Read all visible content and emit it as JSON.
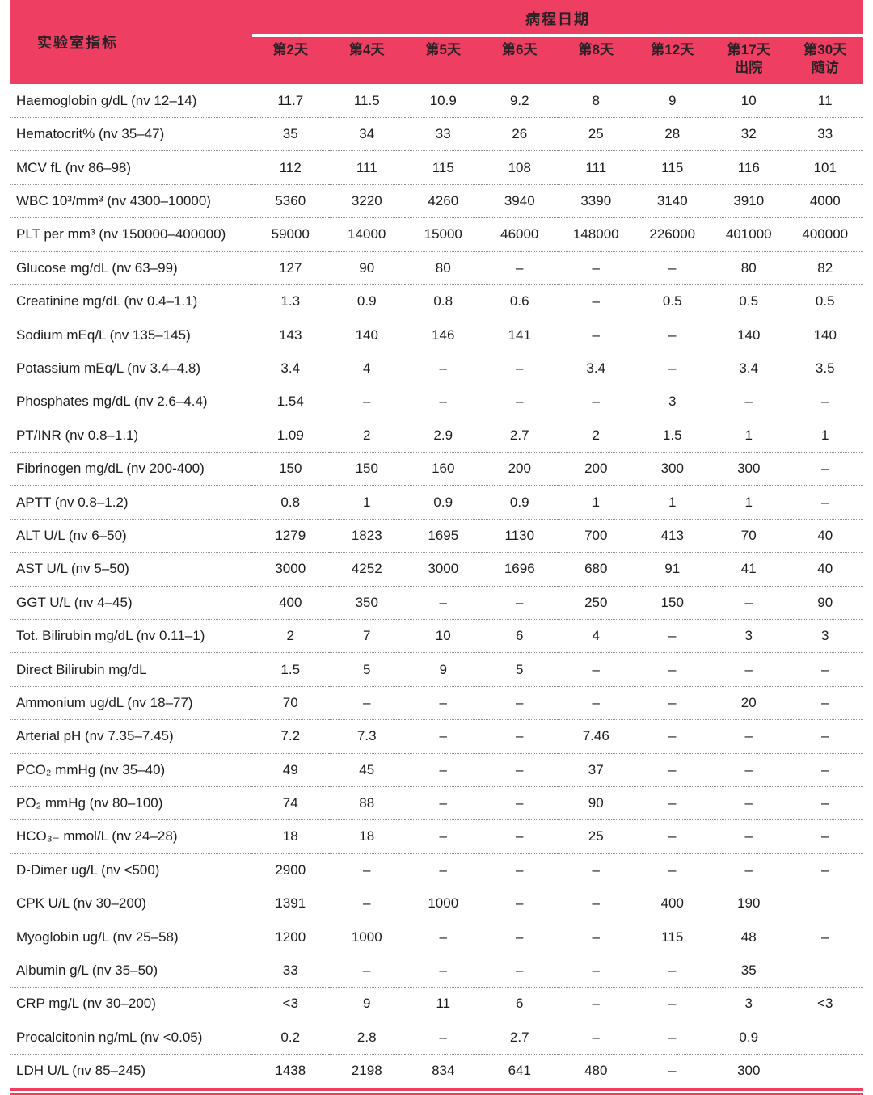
{
  "colors": {
    "accent": "#ee3e62",
    "header-text": "#2b2125",
    "body-text": "#1d1d1d",
    "dot": "#8f8f8f"
  },
  "table": {
    "header": {
      "col1": "实验室指标",
      "group": "病程日期",
      "columns": [
        {
          "label": "第2天",
          "sub": ""
        },
        {
          "label": "第4天",
          "sub": ""
        },
        {
          "label": "第5天",
          "sub": ""
        },
        {
          "label": "第6天",
          "sub": ""
        },
        {
          "label": "第8天",
          "sub": ""
        },
        {
          "label": "第12天",
          "sub": ""
        },
        {
          "label": "第17天",
          "sub": "出院"
        },
        {
          "label": "第30天",
          "sub": "随访"
        }
      ]
    },
    "rows": [
      {
        "label": "Haemoglobin g/dL (nv 12–14)",
        "values": [
          "11.7",
          "11.5",
          "10.9",
          "9.2",
          "8",
          "9",
          "10",
          "11"
        ]
      },
      {
        "label": "Hematocrit% (nv 35–47)",
        "values": [
          "35",
          "34",
          "33",
          "26",
          "25",
          "28",
          "32",
          "33"
        ]
      },
      {
        "label": "MCV fL (nv 86–98)",
        "values": [
          "112",
          "111",
          "115",
          "108",
          "111",
          "115",
          "116",
          "101"
        ]
      },
      {
        "label": "WBC 10³/mm³ (nv 4300–10000)",
        "values": [
          "5360",
          "3220",
          "4260",
          "3940",
          "3390",
          "3140",
          "3910",
          "4000"
        ]
      },
      {
        "label": "PLT per mm³ (nv 150000–400000)",
        "values": [
          "59000",
          "14000",
          "15000",
          "46000",
          "148000",
          "226000",
          "401000",
          "400000"
        ]
      },
      {
        "label": "Glucose mg/dL (nv 63–99)",
        "values": [
          "127",
          "90",
          "80",
          "–",
          "–",
          "–",
          "80",
          "82"
        ]
      },
      {
        "label": "Creatinine mg/dL (nv 0.4–1.1)",
        "values": [
          "1.3",
          "0.9",
          "0.8",
          "0.6",
          "–",
          "0.5",
          "0.5",
          "0.5"
        ]
      },
      {
        "label": "Sodium mEq/L (nv 135–145)",
        "values": [
          "143",
          "140",
          "146",
          "141",
          "–",
          "–",
          "140",
          "140"
        ]
      },
      {
        "label": "Potassium mEq/L (nv 3.4–4.8)",
        "values": [
          "3.4",
          "4",
          "–",
          "–",
          "3.4",
          "–",
          "3.4",
          "3.5"
        ]
      },
      {
        "label": "Phosphates mg/dL (nv 2.6–4.4)",
        "values": [
          "1.54",
          "–",
          "–",
          "–",
          "–",
          "3",
          "–",
          "–"
        ]
      },
      {
        "label": "PT/INR (nv 0.8–1.1)",
        "values": [
          "1.09",
          "2",
          "2.9",
          "2.7",
          "2",
          "1.5",
          "1",
          "1"
        ]
      },
      {
        "label": "Fibrinogen mg/dL (nv 200-400)",
        "values": [
          "150",
          "150",
          "160",
          "200",
          "200",
          "300",
          "300",
          "–"
        ]
      },
      {
        "label": "APTT (nv 0.8–1.2)",
        "values": [
          "0.8",
          "1",
          "0.9",
          "0.9",
          "1",
          "1",
          "1",
          "–"
        ]
      },
      {
        "label": "ALT U/L (nv 6–50)",
        "values": [
          "1279",
          "1823",
          "1695",
          "1130",
          "700",
          "413",
          "70",
          "40"
        ]
      },
      {
        "label": "AST U/L (nv 5–50)",
        "values": [
          "3000",
          "4252",
          "3000",
          "1696",
          "680",
          "91",
          "41",
          "40"
        ]
      },
      {
        "label": "GGT U/L (nv 4–45)",
        "values": [
          "400",
          "350",
          "–",
          "–",
          "250",
          "150",
          "–",
          "90"
        ]
      },
      {
        "label": "Tot. Bilirubin mg/dL (nv 0.11–1)",
        "values": [
          "2",
          "7",
          "10",
          "6",
          "4",
          "–",
          "3",
          "3"
        ]
      },
      {
        "label": "Direct Bilirubin mg/dL",
        "values": [
          "1.5",
          "5",
          "9",
          "5",
          "–",
          "–",
          "–",
          "–"
        ]
      },
      {
        "label": "Ammonium ug/dL (nv 18–77)",
        "values": [
          "70",
          "–",
          "–",
          "–",
          "–",
          "–",
          "20",
          "–"
        ]
      },
      {
        "label": "Arterial pH (nv 7.35–7.45)",
        "values": [
          "7.2",
          "7.3",
          "–",
          "–",
          "7.46",
          "–",
          "–",
          "–"
        ]
      },
      {
        "label": "PCO₂ mmHg (nv 35–40)",
        "values": [
          "49",
          "45",
          "–",
          "–",
          "37",
          "–",
          "–",
          "–"
        ]
      },
      {
        "label": "PO₂ mmHg (nv 80–100)",
        "values": [
          "74",
          "88",
          "–",
          "–",
          "90",
          "–",
          "–",
          "–"
        ]
      },
      {
        "label": "HCO₃₋ mmol/L (nv 24–28)",
        "values": [
          "18",
          "18",
          "–",
          "–",
          "25",
          "–",
          "–",
          "–"
        ]
      },
      {
        "label": "D-Dimer ug/L (nv <500)",
        "values": [
          "2900",
          "–",
          "–",
          "–",
          "–",
          "–",
          "–",
          "–"
        ]
      },
      {
        "label": "CPK U/L (nv 30–200)",
        "values": [
          "1391",
          "–",
          "1000",
          "–",
          "–",
          "400",
          "190",
          ""
        ]
      },
      {
        "label": "Myoglobin ug/L (nv 25–58)",
        "values": [
          "1200",
          "1000",
          "–",
          "–",
          "–",
          "115",
          "48",
          "–"
        ]
      },
      {
        "label": "Albumin g/L (nv 35–50)",
        "values": [
          "33",
          "–",
          "–",
          "–",
          "–",
          "–",
          "35",
          ""
        ]
      },
      {
        "label": "CRP mg/L (nv 30–200)",
        "values": [
          "<3",
          "9",
          "11",
          "6",
          "–",
          "–",
          "3",
          "<3"
        ]
      },
      {
        "label": "Procalcitonin ng/mL (nv <0.05)",
        "values": [
          "0.2",
          "2.8",
          "–",
          "2.7",
          "–",
          "–",
          "0.9",
          ""
        ]
      },
      {
        "label": "LDH U/L (nv 85–245)",
        "values": [
          "1438",
          "2198",
          "834",
          "641",
          "480",
          "–",
          "300",
          ""
        ]
      }
    ]
  }
}
